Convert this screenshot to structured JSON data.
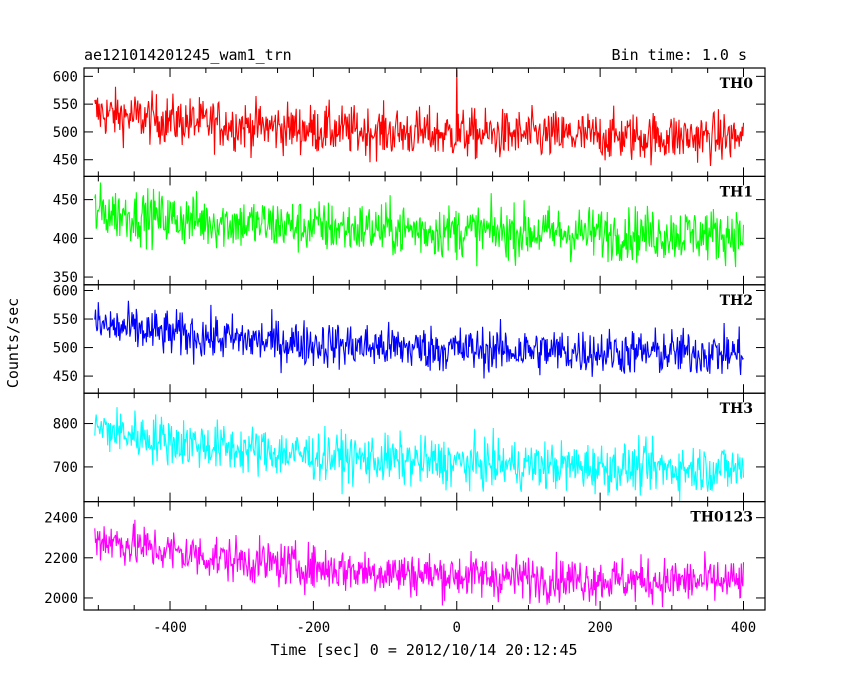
{
  "chart_data": {
    "type": "line",
    "title": "ae121014201245_wam1_trn",
    "subtitle": "Bin time: 1.0 s",
    "xlabel": "Time [sec] 0 = 2012/10/14 20:12:45",
    "ylabel": "Counts/sec",
    "xlim": [
      -520,
      430
    ],
    "x_data_range": [
      -505,
      400
    ],
    "x_ticks": [
      -400,
      -200,
      0,
      200,
      400
    ],
    "grid": false,
    "series": [
      {
        "name": "TH0",
        "color": "#ff0000",
        "ylim": [
          420,
          615
        ],
        "y_ticks": [
          450,
          500,
          550,
          600
        ],
        "start": 535,
        "end": 490,
        "noise": 22,
        "spike_x": 0,
        "spike_value": 612
      },
      {
        "name": "TH1",
        "color": "#00ff00",
        "ylim": [
          340,
          480
        ],
        "y_ticks": [
          350,
          400,
          450
        ],
        "start": 435,
        "end": 405,
        "noise": 17
      },
      {
        "name": "TH2",
        "color": "#0000ff",
        "ylim": [
          420,
          610
        ],
        "y_ticks": [
          450,
          500,
          550,
          600
        ],
        "start": 540,
        "end": 490,
        "noise": 20
      },
      {
        "name": "TH3",
        "color": "#00ffff",
        "ylim": [
          620,
          870
        ],
        "y_ticks": [
          700,
          800
        ],
        "start": 790,
        "end": 695,
        "noise": 28
      },
      {
        "name": "TH0123",
        "color": "#ff00ff",
        "ylim": [
          1940,
          2480
        ],
        "y_ticks": [
          2000,
          2200,
          2400
        ],
        "start": 2300,
        "end": 2080,
        "noise": 55
      }
    ]
  }
}
